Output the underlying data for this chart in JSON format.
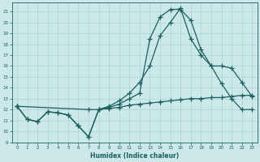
{
  "xlabel": "Humidex (Indice chaleur)",
  "xlim": [
    -0.5,
    23.5
  ],
  "ylim": [
    9,
    21.8
  ],
  "xticks": [
    0,
    1,
    2,
    3,
    4,
    5,
    6,
    7,
    8,
    9,
    10,
    11,
    12,
    13,
    14,
    15,
    16,
    17,
    18,
    19,
    20,
    21,
    22,
    23
  ],
  "yticks": [
    9,
    10,
    11,
    12,
    13,
    14,
    15,
    16,
    17,
    18,
    19,
    20,
    21
  ],
  "bg_color": "#cce8e8",
  "line_color": "#1a6060",
  "grid_color": "#aad4d4",
  "line1_x": [
    0,
    1,
    2,
    3,
    4,
    5,
    6,
    7,
    8,
    9,
    10,
    11,
    12,
    13,
    14,
    15,
    16,
    17,
    18,
    19,
    20,
    21,
    22,
    23
  ],
  "line1_y": [
    12.3,
    11.1,
    10.9,
    11.8,
    11.7,
    11.5,
    10.5,
    9.5,
    12.0,
    12.2,
    12.5,
    13.0,
    13.5,
    18.5,
    20.5,
    21.2,
    21.2,
    20.2,
    17.5,
    16.0,
    14.4,
    13.0,
    12.0,
    12.0
  ],
  "line2_x": [
    0,
    1,
    2,
    3,
    4,
    5,
    6,
    7,
    8,
    9,
    10,
    11,
    12,
    13,
    14,
    15,
    16,
    17,
    18,
    19,
    20,
    21,
    22,
    23
  ],
  "line2_y": [
    12.3,
    11.1,
    10.9,
    11.8,
    11.7,
    11.5,
    10.5,
    9.5,
    12.0,
    12.3,
    12.8,
    13.5,
    14.5,
    16.0,
    18.8,
    20.0,
    21.3,
    18.5,
    17.0,
    16.0,
    16.0,
    15.8,
    14.5,
    13.2
  ],
  "line3_x": [
    0,
    7,
    8,
    9,
    10,
    11,
    12,
    13,
    14,
    15,
    16,
    17,
    18,
    19,
    20,
    21,
    22,
    23
  ],
  "line3_y": [
    12.3,
    12.0,
    12.0,
    12.1,
    12.2,
    12.4,
    12.5,
    12.6,
    12.7,
    12.8,
    12.9,
    13.0,
    13.0,
    13.1,
    13.1,
    13.2,
    13.3,
    13.3
  ]
}
